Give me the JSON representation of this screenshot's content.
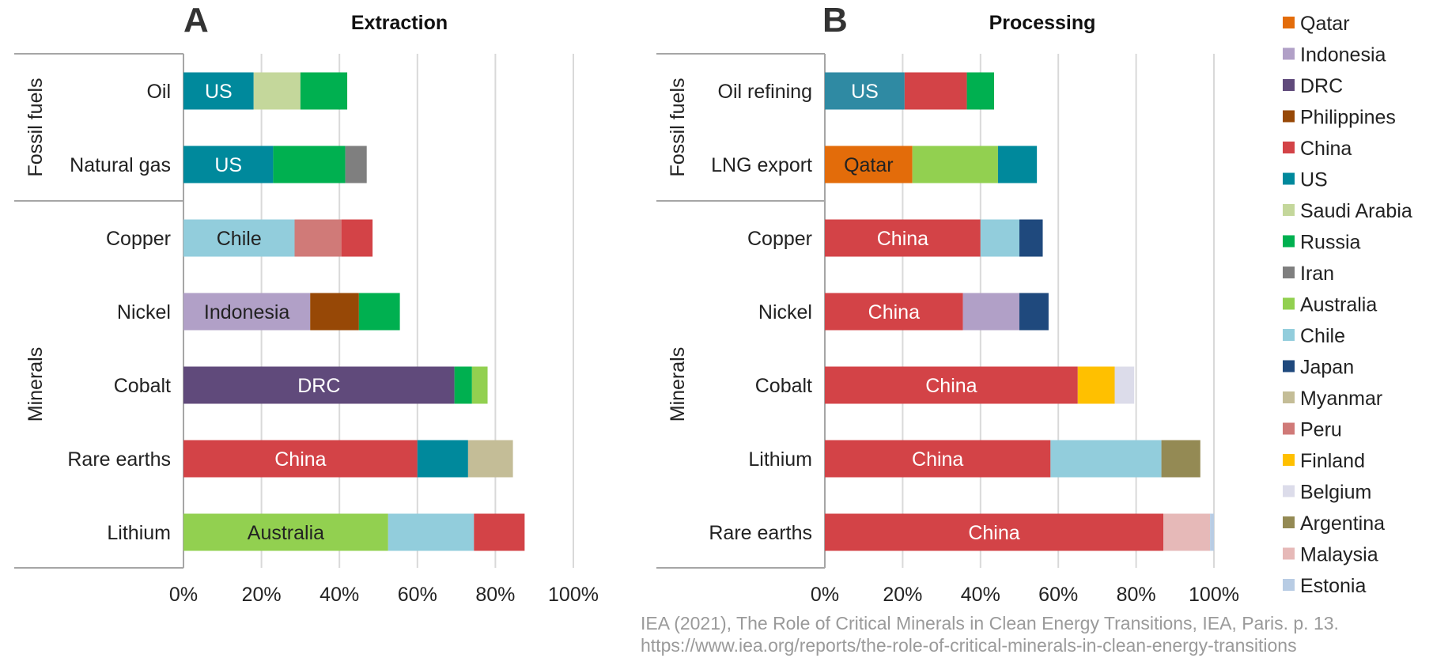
{
  "chart_data": [
    {
      "type": "bar",
      "orientation": "horizontal",
      "stacked": true,
      "panel_letter": "A",
      "title": "Extraction",
      "xlim": [
        0,
        100
      ],
      "x_ticks": [
        "0%",
        "20%",
        "40%",
        "60%",
        "80%",
        "100%"
      ],
      "groups": [
        {
          "label": "Fossil fuels",
          "categories": [
            "Oil",
            "Natural gas"
          ]
        },
        {
          "label": "Minerals",
          "categories": [
            "Copper",
            "Nickel",
            "Cobalt",
            "Rare earths",
            "Lithium"
          ]
        }
      ],
      "bars": [
        {
          "category": "Oil",
          "segments": [
            {
              "country": "US",
              "value": 18,
              "label": "US"
            },
            {
              "country": "Saudi Arabia",
              "value": 12
            },
            {
              "country": "Russia",
              "value": 12
            }
          ]
        },
        {
          "category": "Natural gas",
          "segments": [
            {
              "country": "US",
              "value": 23,
              "label": "US"
            },
            {
              "country": "Russia",
              "value": 18.5
            },
            {
              "country": "Iran",
              "value": 5.5
            }
          ]
        },
        {
          "category": "Copper",
          "segments": [
            {
              "country": "Chile",
              "value": 28.5,
              "label": "Chile"
            },
            {
              "country": "Peru",
              "value": 12
            },
            {
              "country": "China",
              "value": 8
            }
          ]
        },
        {
          "category": "Nickel",
          "segments": [
            {
              "country": "Indonesia",
              "value": 32.5,
              "label": "Indonesia"
            },
            {
              "country": "Philippines",
              "value": 12.5
            },
            {
              "country": "Russia",
              "value": 10.5
            }
          ]
        },
        {
          "category": "Cobalt",
          "segments": [
            {
              "country": "DRC",
              "value": 69.5,
              "label": "DRC"
            },
            {
              "country": "Russia",
              "value": 4.5
            },
            {
              "country": "Australia",
              "value": 4
            }
          ]
        },
        {
          "category": "Rare earths",
          "segments": [
            {
              "country": "China",
              "value": 60,
              "label": "China"
            },
            {
              "country": "US",
              "value": 13
            },
            {
              "country": "Myanmar",
              "value": 11.5
            }
          ]
        },
        {
          "category": "Lithium",
          "segments": [
            {
              "country": "Australia",
              "value": 52.5,
              "label": "Australia"
            },
            {
              "country": "Chile",
              "value": 22
            },
            {
              "country": "China",
              "value": 13
            }
          ]
        }
      ]
    },
    {
      "type": "bar",
      "orientation": "horizontal",
      "stacked": true,
      "panel_letter": "B",
      "title": "Processing",
      "xlim": [
        0,
        100
      ],
      "x_ticks": [
        "0%",
        "20%",
        "40%",
        "60%",
        "80%",
        "100%"
      ],
      "groups": [
        {
          "label": "Fossil fuels",
          "categories": [
            "Oil refining",
            "LNG export"
          ]
        },
        {
          "label": "Minerals",
          "categories": [
            "Copper",
            "Nickel",
            "Cobalt",
            "Lithium",
            "Rare earths"
          ]
        }
      ],
      "bars": [
        {
          "category": "Oil refining",
          "segments": [
            {
              "country": "US",
              "value": 20.5,
              "label": "US",
              "color": "#2f8aa3"
            },
            {
              "country": "China",
              "value": 16
            },
            {
              "country": "Russia",
              "value": 7
            }
          ]
        },
        {
          "category": "LNG export",
          "segments": [
            {
              "country": "Qatar",
              "value": 22.5,
              "label": "Qatar"
            },
            {
              "country": "Australia",
              "value": 22
            },
            {
              "country": "US",
              "value": 10
            }
          ]
        },
        {
          "category": "Copper",
          "segments": [
            {
              "country": "China",
              "value": 40,
              "label": "China"
            },
            {
              "country": "Chile",
              "value": 10
            },
            {
              "country": "Japan",
              "value": 6
            }
          ]
        },
        {
          "category": "Nickel",
          "segments": [
            {
              "country": "China",
              "value": 35.5,
              "label": "China"
            },
            {
              "country": "Indonesia",
              "value": 14.5
            },
            {
              "country": "Japan",
              "value": 7.5
            }
          ]
        },
        {
          "category": "Cobalt",
          "segments": [
            {
              "country": "China",
              "value": 65,
              "label": "China"
            },
            {
              "country": "Finland",
              "value": 9.5
            },
            {
              "country": "Belgium",
              "value": 5
            }
          ]
        },
        {
          "category": "Lithium",
          "segments": [
            {
              "country": "China",
              "value": 58,
              "label": "China"
            },
            {
              "country": "Chile",
              "value": 28.5
            },
            {
              "country": "Argentina",
              "value": 10
            }
          ]
        },
        {
          "category": "Rare earths",
          "segments": [
            {
              "country": "China",
              "value": 87,
              "label": "China"
            },
            {
              "country": "Malaysia",
              "value": 12
            },
            {
              "country": "Estonia",
              "value": 1
            }
          ]
        }
      ]
    }
  ],
  "legend": {
    "placement": "right",
    "items": [
      {
        "name": "Qatar",
        "color": "#e36c0a"
      },
      {
        "name": "Indonesia",
        "color": "#b1a0c7"
      },
      {
        "name": "DRC",
        "color": "#604a7b"
      },
      {
        "name": "Philippines",
        "color": "#974806"
      },
      {
        "name": "China",
        "color": "#d34347"
      },
      {
        "name": "US",
        "color": "#00899c"
      },
      {
        "name": "Saudi Arabia",
        "color": "#c4d79b"
      },
      {
        "name": "Russia",
        "color": "#00b050"
      },
      {
        "name": "Iran",
        "color": "#7f7f7f"
      },
      {
        "name": "Australia",
        "color": "#92d050"
      },
      {
        "name": "Chile",
        "color": "#92cddc"
      },
      {
        "name": "Japan",
        "color": "#1f497d"
      },
      {
        "name": "Myanmar",
        "color": "#c4bd97"
      },
      {
        "name": "Peru",
        "color": "#d07a78"
      },
      {
        "name": "Finland",
        "color": "#ffc000"
      },
      {
        "name": "Belgium",
        "color": "#dcdcea"
      },
      {
        "name": "Argentina",
        "color": "#948a54"
      },
      {
        "name": "Malaysia",
        "color": "#e6b9b8"
      },
      {
        "name": "Estonia",
        "color": "#b8cce4"
      }
    ]
  },
  "citation": {
    "line1": "IEA (2021), The Role of Critical Minerals in Clean Energy Transitions, IEA, Paris. p. 13.",
    "line2": "https://www.iea.org/reports/the-role-of-critical-minerals-in-clean-energy-transitions"
  }
}
